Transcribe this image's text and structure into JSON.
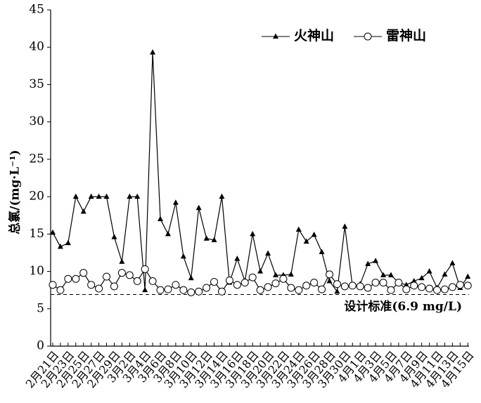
{
  "chart_data": {
    "type": "line",
    "y_label": "总氯/(mg·L⁻¹)",
    "categories": [
      "2月21日",
      null,
      "2月23日",
      null,
      "2月25日",
      null,
      "2月27日",
      null,
      "2月29日",
      null,
      "3月2日",
      null,
      "3月4日",
      null,
      "3月6日",
      null,
      "3月8日",
      null,
      "3月10日",
      null,
      "3月12日",
      null,
      "3月14日",
      null,
      "3月16日",
      null,
      "3月18日",
      null,
      "3月20日",
      null,
      "3月22日",
      null,
      "3月24日",
      null,
      "3月26日",
      null,
      "3月28日",
      null,
      "3月30日",
      null,
      "4月1日",
      null,
      "4月3日",
      null,
      "4月5日",
      null,
      "4月7日",
      null,
      "4月9日",
      null,
      "4月11日",
      null,
      "4月13日",
      null,
      "4月15日"
    ],
    "series": [
      {
        "name": "火神山",
        "color": "#000000",
        "marker": "triangle",
        "values": [
          15.2,
          13.3,
          13.8,
          20,
          18,
          20,
          20,
          20,
          14.6,
          11.3,
          20,
          20,
          7.5,
          39.3,
          17,
          15,
          19.2,
          12,
          9.1,
          18.5,
          14.4,
          14.2,
          20,
          8.5,
          11.7,
          8.7,
          15,
          10,
          12.4,
          9.5,
          9.5,
          9.6,
          15.6,
          14,
          14.9,
          12.6,
          8.7,
          7.3,
          16,
          8,
          8.3,
          11,
          11.4,
          9.5,
          9.5,
          8.5,
          8.2,
          8.7,
          9.1,
          10,
          7.8,
          9.6,
          11.1,
          7.8,
          9.3
        ]
      },
      {
        "name": "雷神山",
        "color": "#000000",
        "marker": "circle",
        "values": [
          8.2,
          7.5,
          9,
          9,
          9.8,
          8.2,
          7.7,
          9.3,
          8,
          9.8,
          9.5,
          8.7,
          10.3,
          8.7,
          7.5,
          7.6,
          8.2,
          7.5,
          7.2,
          7.3,
          7.8,
          8.6,
          7.3,
          8.8,
          8.2,
          8.5,
          9.2,
          7.5,
          7.9,
          8.4,
          9,
          7.8,
          7.5,
          8.1,
          8.5,
          7.6,
          9.6,
          8.3,
          8,
          8.1,
          8,
          7.8,
          8.5,
          8.5,
          7.5,
          8.5,
          7.6,
          8.1,
          7.9,
          7.7,
          7.5,
          7.6,
          7.9,
          8.2,
          8.1
        ]
      }
    ],
    "reference_line": {
      "value": 6.9,
      "label": "设计标准(6.9 mg/L)"
    },
    "ylim": [
      0,
      45
    ],
    "yticks": [
      0,
      5,
      10,
      15,
      20,
      25,
      30,
      35,
      40,
      45
    ],
    "legend": "top-right"
  }
}
